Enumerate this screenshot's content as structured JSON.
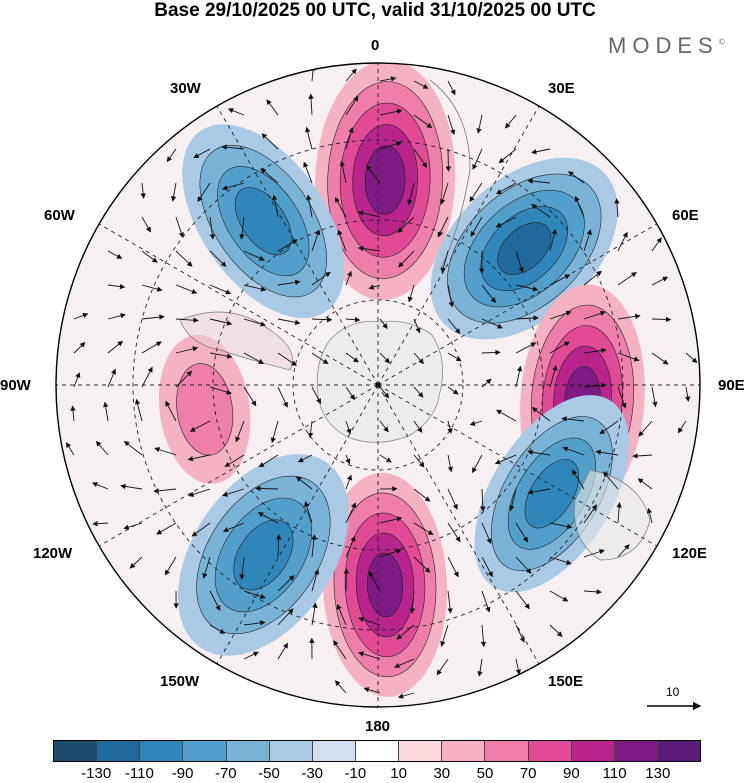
{
  "title": "Base 29/10/2025 00 UTC, valid 31/10/2025 00 UTC",
  "brand": "MODES",
  "brand_mark": "©",
  "longitude_labels": {
    "lon_0": "0",
    "lon_30e": "30E",
    "lon_60e": "60E",
    "lon_90e": "90E",
    "lon_120e": "120E",
    "lon_150e": "150E",
    "lon_180": "180",
    "lon_150w": "150W",
    "lon_120w": "120W",
    "lon_90w": "90W",
    "lon_60w": "60W",
    "lon_30w": "30W"
  },
  "reference_vector": {
    "label": "10"
  },
  "colorbar": {
    "ticks": [
      "-130",
      "-110",
      "-90",
      "-70",
      "-50",
      "-30",
      "-10",
      "10",
      "30",
      "50",
      "70",
      "90",
      "110",
      "130"
    ],
    "colors": [
      "#1b4b6b",
      "#1f6a9a",
      "#2f86b8",
      "#529fcb",
      "#7ab3d8",
      "#a9c9e4",
      "#d3ddef",
      "#ffffff",
      "#fadadd",
      "#f5b2c3",
      "#ee7fab",
      "#e14a95",
      "#b8248b",
      "#7e1a84",
      "#591a78"
    ]
  },
  "map_anomalies": [
    {
      "sign": "positive",
      "strength": 5
    },
    {
      "sign": "negative",
      "strength": 5
    },
    {
      "sign": "positive",
      "strength": 5
    },
    {
      "sign": "negative",
      "strength": 4
    },
    {
      "sign": "positive",
      "strength": 5
    },
    {
      "sign": "negative",
      "strength": 4
    },
    {
      "sign": "positive",
      "strength": 2
    },
    {
      "sign": "negative",
      "strength": 4
    }
  ]
}
